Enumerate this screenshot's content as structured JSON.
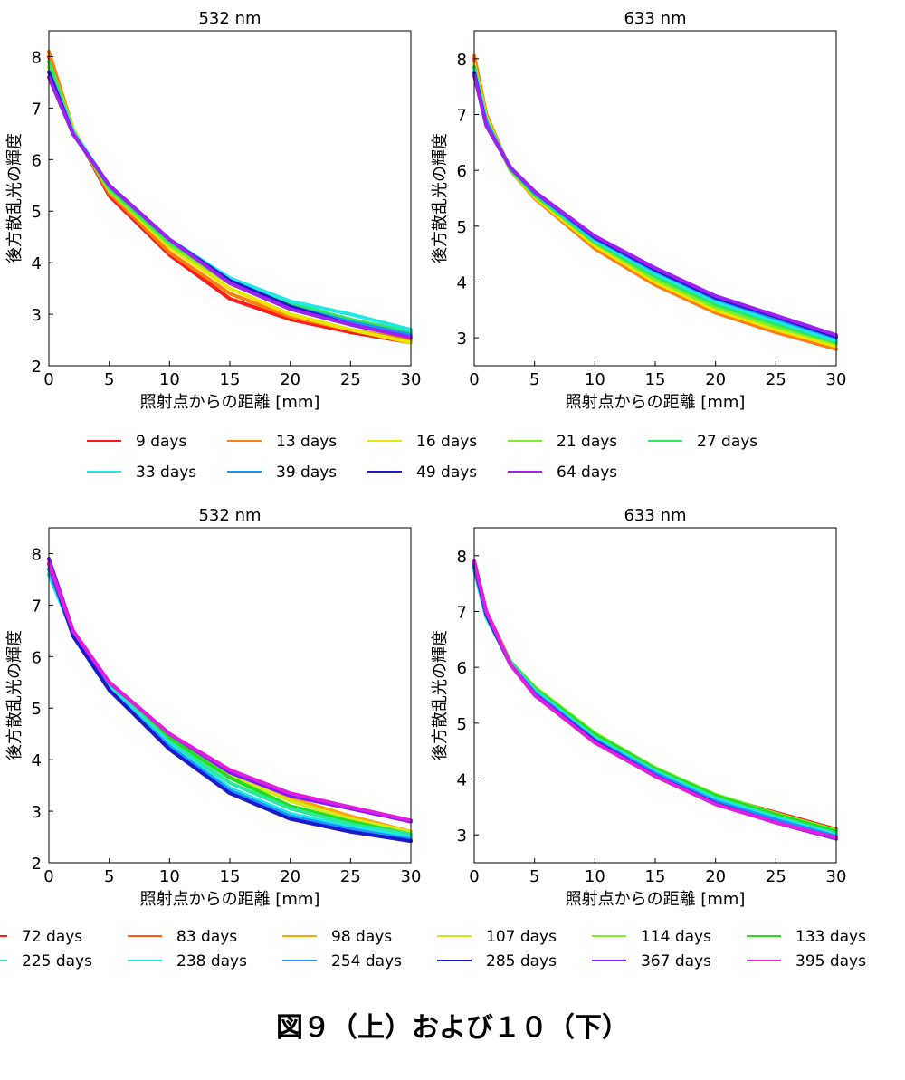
{
  "caption": "図９（上）および１０（下）",
  "chart_data": [
    {
      "type": "line",
      "title": "532 nm",
      "xlabel": "照射点からの距離 [mm]",
      "ylabel": "後方散乱光の輝度",
      "xlim": [
        0,
        30
      ],
      "ylim": [
        2,
        8.5
      ],
      "xticks": [
        0,
        5,
        10,
        15,
        20,
        25,
        30
      ],
      "yticks": [
        2,
        3,
        4,
        5,
        6,
        7,
        8
      ],
      "series": [
        {
          "name": "9 days",
          "color": "#ff1a1a",
          "x": [
            0,
            2,
            5,
            10,
            15,
            20,
            25,
            30
          ],
          "y": [
            8.0,
            6.6,
            5.3,
            4.15,
            3.3,
            2.9,
            2.65,
            2.45
          ]
        },
        {
          "name": "13 days",
          "color": "#ff7f0e",
          "x": [
            0,
            2,
            5,
            10,
            15,
            20,
            25,
            30
          ],
          "y": [
            8.1,
            6.6,
            5.35,
            4.2,
            3.4,
            2.95,
            2.7,
            2.5
          ]
        },
        {
          "name": "16 days",
          "color": "#e8e800",
          "x": [
            0,
            2,
            5,
            10,
            15,
            20,
            25,
            30
          ],
          "y": [
            7.9,
            6.6,
            5.4,
            4.3,
            3.5,
            3.0,
            2.7,
            2.45
          ]
        },
        {
          "name": "21 days",
          "color": "#7fee2e",
          "x": [
            0,
            2,
            5,
            10,
            15,
            20,
            25,
            30
          ],
          "y": [
            7.8,
            6.55,
            5.4,
            4.35,
            3.6,
            3.1,
            2.8,
            2.55
          ]
        },
        {
          "name": "27 days",
          "color": "#2ee85a",
          "x": [
            0,
            2,
            5,
            10,
            15,
            20,
            25,
            30
          ],
          "y": [
            7.9,
            6.55,
            5.45,
            4.4,
            3.65,
            3.2,
            2.9,
            2.65
          ]
        },
        {
          "name": "33 days",
          "color": "#1ee8e0",
          "x": [
            0,
            2,
            5,
            10,
            15,
            20,
            25,
            30
          ],
          "y": [
            7.7,
            6.55,
            5.5,
            4.45,
            3.7,
            3.25,
            3.0,
            2.7
          ]
        },
        {
          "name": "39 days",
          "color": "#1e90ff",
          "x": [
            0,
            2,
            5,
            10,
            15,
            20,
            25,
            30
          ],
          "y": [
            7.6,
            6.5,
            5.5,
            4.45,
            3.65,
            3.15,
            2.85,
            2.6
          ]
        },
        {
          "name": "49 days",
          "color": "#1a1acc",
          "x": [
            0,
            2,
            5,
            10,
            15,
            20,
            25,
            30
          ],
          "y": [
            7.7,
            6.5,
            5.5,
            4.45,
            3.65,
            3.15,
            2.8,
            2.55
          ]
        },
        {
          "name": "64 days",
          "color": "#a020f0",
          "x": [
            0,
            2,
            5,
            10,
            15,
            20,
            25,
            30
          ],
          "y": [
            7.6,
            6.5,
            5.5,
            4.45,
            3.6,
            3.1,
            2.8,
            2.55
          ]
        }
      ]
    },
    {
      "type": "line",
      "title": "633 nm",
      "xlabel": "照射点からの距離 [mm]",
      "ylabel": "後方散乱光の輝度",
      "xlim": [
        0,
        30
      ],
      "ylim": [
        2.5,
        8.5
      ],
      "xticks": [
        0,
        5,
        10,
        15,
        20,
        25,
        30
      ],
      "yticks": [
        3,
        4,
        5,
        6,
        7,
        8
      ],
      "series": [
        {
          "name": "9 days",
          "color": "#ff1a1a",
          "x": [
            0,
            1,
            3,
            5,
            10,
            15,
            20,
            25,
            30
          ],
          "y": [
            8.0,
            7.0,
            6.0,
            5.5,
            4.6,
            3.95,
            3.45,
            3.1,
            2.8
          ]
        },
        {
          "name": "13 days",
          "color": "#ff7f0e",
          "x": [
            0,
            1,
            3,
            5,
            10,
            15,
            20,
            25,
            30
          ],
          "y": [
            8.05,
            7.0,
            6.0,
            5.5,
            4.6,
            3.95,
            3.45,
            3.1,
            2.8
          ]
        },
        {
          "name": "16 days",
          "color": "#e8e800",
          "x": [
            0,
            1,
            3,
            5,
            10,
            15,
            20,
            25,
            30
          ],
          "y": [
            7.9,
            6.95,
            6.0,
            5.52,
            4.65,
            4.0,
            3.5,
            3.15,
            2.85
          ]
        },
        {
          "name": "21 days",
          "color": "#7fee2e",
          "x": [
            0,
            1,
            3,
            5,
            10,
            15,
            20,
            25,
            30
          ],
          "y": [
            7.8,
            6.9,
            6.0,
            5.55,
            4.7,
            4.05,
            3.55,
            3.2,
            2.9
          ]
        },
        {
          "name": "27 days",
          "color": "#2ee85a",
          "x": [
            0,
            1,
            3,
            5,
            10,
            15,
            20,
            25,
            30
          ],
          "y": [
            7.85,
            6.9,
            6.02,
            5.57,
            4.72,
            4.1,
            3.6,
            3.25,
            2.92
          ]
        },
        {
          "name": "33 days",
          "color": "#1ee8e0",
          "x": [
            0,
            1,
            3,
            5,
            10,
            15,
            20,
            25,
            30
          ],
          "y": [
            7.8,
            6.85,
            6.05,
            5.6,
            4.75,
            4.15,
            3.65,
            3.3,
            2.95
          ]
        },
        {
          "name": "39 days",
          "color": "#1e90ff",
          "x": [
            0,
            1,
            3,
            5,
            10,
            15,
            20,
            25,
            30
          ],
          "y": [
            7.7,
            6.85,
            6.05,
            5.6,
            4.78,
            4.2,
            3.7,
            3.35,
            3.0
          ]
        },
        {
          "name": "49 days",
          "color": "#1a1acc",
          "x": [
            0,
            1,
            3,
            5,
            10,
            15,
            20,
            25,
            30
          ],
          "y": [
            7.75,
            6.8,
            6.05,
            5.62,
            4.8,
            4.22,
            3.72,
            3.38,
            3.02
          ]
        },
        {
          "name": "64 days",
          "color": "#a020f0",
          "x": [
            0,
            1,
            3,
            5,
            10,
            15,
            20,
            25,
            30
          ],
          "y": [
            7.7,
            6.8,
            6.05,
            5.62,
            4.82,
            4.25,
            3.75,
            3.4,
            3.05
          ]
        }
      ]
    },
    {
      "type": "line",
      "title": "532 nm",
      "xlabel": "照射点からの距離 [mm]",
      "ylabel": "後方散乱光の輝度",
      "xlim": [
        0,
        30
      ],
      "ylim": [
        2,
        8.5
      ],
      "xticks": [
        0,
        5,
        10,
        15,
        20,
        25,
        30
      ],
      "yticks": [
        2,
        3,
        4,
        5,
        6,
        7,
        8
      ],
      "series": [
        {
          "name": "72 days",
          "color": "#ff1a1a",
          "x": [
            0,
            2,
            5,
            10,
            15,
            20,
            25,
            30
          ],
          "y": [
            7.9,
            6.5,
            5.5,
            4.5,
            3.75,
            3.25,
            2.9,
            2.6
          ]
        },
        {
          "name": "83 days",
          "color": "#ff5a1a",
          "x": [
            0,
            2,
            5,
            10,
            15,
            20,
            25,
            30
          ],
          "y": [
            7.8,
            6.5,
            5.5,
            4.5,
            3.75,
            3.25,
            2.9,
            2.6
          ]
        },
        {
          "name": "98 days",
          "color": "#ffa500",
          "x": [
            0,
            2,
            5,
            10,
            15,
            20,
            25,
            30
          ],
          "y": [
            7.7,
            6.5,
            5.5,
            4.5,
            3.75,
            3.25,
            2.9,
            2.6
          ]
        },
        {
          "name": "107 days",
          "color": "#d4e81e",
          "x": [
            0,
            2,
            5,
            10,
            15,
            20,
            25,
            30
          ],
          "y": [
            7.6,
            6.5,
            5.5,
            4.45,
            3.7,
            3.2,
            2.85,
            2.6
          ]
        },
        {
          "name": "114 days",
          "color": "#7fee2e",
          "x": [
            0,
            2,
            5,
            10,
            15,
            20,
            25,
            30
          ],
          "y": [
            7.6,
            6.5,
            5.48,
            4.42,
            3.65,
            3.1,
            2.8,
            2.55
          ]
        },
        {
          "name": "133 days",
          "color": "#22dd22",
          "x": [
            0,
            2,
            5,
            10,
            15,
            20,
            25,
            30
          ],
          "y": [
            7.7,
            6.5,
            5.48,
            4.42,
            3.65,
            3.1,
            2.8,
            2.55
          ]
        },
        {
          "name": "225 days",
          "color": "#2ee8a0",
          "x": [
            0,
            2,
            5,
            10,
            15,
            20,
            25,
            30
          ],
          "y": [
            7.8,
            6.5,
            5.45,
            4.35,
            3.55,
            3.05,
            2.75,
            2.55
          ]
        },
        {
          "name": "238 days",
          "color": "#1ee8e0",
          "x": [
            0,
            2,
            5,
            10,
            15,
            20,
            25,
            30
          ],
          "y": [
            7.6,
            6.45,
            5.4,
            4.3,
            3.45,
            2.95,
            2.7,
            2.5
          ]
        },
        {
          "name": "254 days",
          "color": "#1e90ff",
          "x": [
            0,
            2,
            5,
            10,
            15,
            20,
            25,
            30
          ],
          "y": [
            7.7,
            6.45,
            5.35,
            4.25,
            3.4,
            2.9,
            2.65,
            2.45
          ]
        },
        {
          "name": "285 days",
          "color": "#1a1acc",
          "x": [
            0,
            2,
            5,
            10,
            15,
            20,
            25,
            30
          ],
          "y": [
            7.8,
            6.4,
            5.35,
            4.2,
            3.35,
            2.85,
            2.6,
            2.42
          ]
        },
        {
          "name": "367 days",
          "color": "#7a1aff",
          "x": [
            0,
            2,
            5,
            10,
            15,
            20,
            25,
            30
          ],
          "y": [
            7.9,
            6.5,
            5.5,
            4.5,
            3.75,
            3.3,
            3.05,
            2.8
          ]
        },
        {
          "name": "395 days",
          "color": "#e01ee0",
          "x": [
            0,
            2,
            5,
            10,
            15,
            20,
            25,
            30
          ],
          "y": [
            7.8,
            6.5,
            5.5,
            4.5,
            3.8,
            3.35,
            3.08,
            2.82
          ]
        }
      ]
    },
    {
      "type": "line",
      "title": "633 nm",
      "xlabel": "照射点からの距離 [mm]",
      "ylabel": "後方散乱光の輝度",
      "xlim": [
        0,
        30
      ],
      "ylim": [
        2.5,
        8.5
      ],
      "xticks": [
        0,
        5,
        10,
        15,
        20,
        25,
        30
      ],
      "yticks": [
        3,
        4,
        5,
        6,
        7,
        8
      ],
      "series": [
        {
          "name": "72 days",
          "color": "#ff1a1a",
          "x": [
            0,
            1,
            3,
            5,
            10,
            15,
            20,
            25,
            30
          ],
          "y": [
            7.9,
            7.0,
            6.1,
            5.6,
            4.75,
            4.15,
            3.7,
            3.4,
            3.1
          ]
        },
        {
          "name": "83 days",
          "color": "#ff5a1a",
          "x": [
            0,
            1,
            3,
            5,
            10,
            15,
            20,
            25,
            30
          ],
          "y": [
            7.85,
            7.0,
            6.1,
            5.6,
            4.75,
            4.15,
            3.7,
            3.38,
            3.08
          ]
        },
        {
          "name": "98 days",
          "color": "#ffa500",
          "x": [
            0,
            1,
            3,
            5,
            10,
            15,
            20,
            25,
            30
          ],
          "y": [
            7.8,
            6.95,
            6.1,
            5.6,
            4.75,
            4.15,
            3.68,
            3.35,
            3.05
          ]
        },
        {
          "name": "107 days",
          "color": "#d4e81e",
          "x": [
            0,
            1,
            3,
            5,
            10,
            15,
            20,
            25,
            30
          ],
          "y": [
            7.8,
            6.95,
            6.1,
            5.62,
            4.78,
            4.18,
            3.7,
            3.37,
            3.07
          ]
        },
        {
          "name": "114 days",
          "color": "#7fee2e",
          "x": [
            0,
            1,
            3,
            5,
            10,
            15,
            20,
            25,
            30
          ],
          "y": [
            7.75,
            6.9,
            6.1,
            5.65,
            4.82,
            4.2,
            3.72,
            3.38,
            3.08
          ]
        },
        {
          "name": "133 days",
          "color": "#22dd22",
          "x": [
            0,
            1,
            3,
            5,
            10,
            15,
            20,
            25,
            30
          ],
          "y": [
            7.8,
            6.9,
            6.1,
            5.62,
            4.8,
            4.18,
            3.7,
            3.36,
            3.06
          ]
        },
        {
          "name": "225 days",
          "color": "#2ee8a0",
          "x": [
            0,
            1,
            3,
            5,
            10,
            15,
            20,
            25,
            30
          ],
          "y": [
            7.8,
            6.9,
            6.08,
            5.6,
            4.75,
            4.15,
            3.66,
            3.32,
            3.02
          ]
        },
        {
          "name": "238 days",
          "color": "#1ee8e0",
          "x": [
            0,
            1,
            3,
            5,
            10,
            15,
            20,
            25,
            30
          ],
          "y": [
            7.75,
            6.9,
            6.06,
            5.58,
            4.72,
            4.12,
            3.63,
            3.3,
            3.0
          ]
        },
        {
          "name": "254 days",
          "color": "#1e90ff",
          "x": [
            0,
            1,
            3,
            5,
            10,
            15,
            20,
            25,
            30
          ],
          "y": [
            7.8,
            6.95,
            6.05,
            5.55,
            4.7,
            4.1,
            3.6,
            3.27,
            2.97
          ]
        },
        {
          "name": "285 days",
          "color": "#1a1acc",
          "x": [
            0,
            1,
            3,
            5,
            10,
            15,
            20,
            25,
            30
          ],
          "y": [
            7.85,
            6.95,
            6.05,
            5.52,
            4.68,
            4.06,
            3.56,
            3.22,
            2.93
          ]
        },
        {
          "name": "367 days",
          "color": "#7a1aff",
          "x": [
            0,
            1,
            3,
            5,
            10,
            15,
            20,
            25,
            30
          ],
          "y": [
            7.9,
            7.0,
            6.05,
            5.52,
            4.66,
            4.05,
            3.55,
            3.22,
            2.93
          ]
        },
        {
          "name": "395 days",
          "color": "#e01ee0",
          "x": [
            0,
            1,
            3,
            5,
            10,
            15,
            20,
            25,
            30
          ],
          "y": [
            7.9,
            7.0,
            6.05,
            5.5,
            4.65,
            4.05,
            3.55,
            3.22,
            2.95
          ]
        }
      ]
    }
  ],
  "legends": [
    {
      "entries": [
        "9 days",
        "13 days",
        "16 days",
        "21 days",
        "27 days",
        "33 days",
        "39 days",
        "49 days",
        "64 days"
      ]
    },
    {
      "entries": [
        "72 days",
        "83 days",
        "98 days",
        "107 days",
        "114 days",
        "133 days",
        "225 days",
        "238 days",
        "254 days",
        "285 days",
        "367 days",
        "395 days"
      ]
    }
  ]
}
